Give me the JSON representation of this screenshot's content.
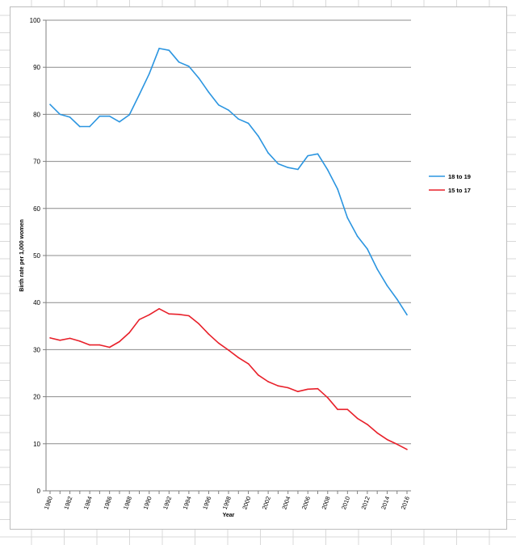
{
  "chart_data": {
    "type": "line",
    "title": "",
    "xlabel": "Year",
    "ylabel": "Birth rate per 1,000 women",
    "ylim": [
      0,
      100
    ],
    "yticks": [
      "0",
      "10",
      "20",
      "30",
      "40",
      "50",
      "60",
      "70",
      "80",
      "90",
      "100"
    ],
    "xticks": [
      "1980",
      "1982",
      "1984",
      "1986",
      "1988",
      "1990",
      "1992",
      "1994",
      "1996",
      "1998",
      "2000",
      "2002",
      "2004",
      "2006",
      "2008",
      "2010",
      "2012",
      "2014",
      "2016"
    ],
    "grid": "horizontal",
    "legend_position": "right",
    "x": [
      1980,
      1981,
      1982,
      1983,
      1984,
      1985,
      1986,
      1987,
      1988,
      1989,
      1990,
      1991,
      1992,
      1993,
      1994,
      1995,
      1996,
      1997,
      1998,
      1999,
      2000,
      2001,
      2002,
      2003,
      2004,
      2005,
      2006,
      2007,
      2008,
      2009,
      2010,
      2011,
      2012,
      2013,
      2014,
      2015,
      2016
    ],
    "series": [
      {
        "name": "18 to 19",
        "color": "#2b95e0",
        "values": [
          82.1,
          80.0,
          79.4,
          77.4,
          77.4,
          79.6,
          79.6,
          78.4,
          79.9,
          84.2,
          88.6,
          94.0,
          93.6,
          91.1,
          90.2,
          87.7,
          84.7,
          82.0,
          80.9,
          79.0,
          78.1,
          75.4,
          71.8,
          69.5,
          68.7,
          68.3,
          71.2,
          71.6,
          68.2,
          64.1,
          58.0,
          54.1,
          51.4,
          47.1,
          43.6,
          40.7,
          37.4
        ]
      },
      {
        "name": "15 to 17",
        "color": "#e8202a",
        "values": [
          32.5,
          32.0,
          32.4,
          31.8,
          31.0,
          31.0,
          30.5,
          31.7,
          33.6,
          36.4,
          37.4,
          38.7,
          37.6,
          37.5,
          37.2,
          35.5,
          33.3,
          31.4,
          29.9,
          28.3,
          27.0,
          24.6,
          23.2,
          22.3,
          21.9,
          21.1,
          21.6,
          21.7,
          19.8,
          17.3,
          17.3,
          15.4,
          14.1,
          12.3,
          10.9,
          9.9,
          8.8
        ]
      }
    ]
  }
}
